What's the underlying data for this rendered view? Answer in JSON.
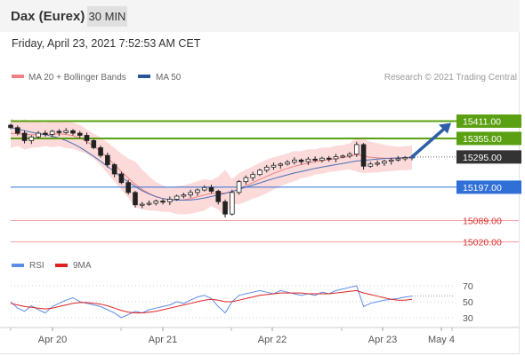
{
  "header": {
    "instrument": "Dax (Eurex)",
    "timeframe": "30 MIN",
    "timestamp": "Friday, April 23, 2021 7:52:53 AM CET"
  },
  "legend": {
    "bollinger_label": "MA 20 + Bollinger Bands",
    "ma50_label": "MA 50",
    "credit": "Research © 2021 Trading Central"
  },
  "colors": {
    "resistance": "#5aa012",
    "support": "#2f6fd6",
    "lower_line": "#f08080",
    "lower_text": "#e03030",
    "pivot": "#333333",
    "bollinger_fill": "#fbd3d3",
    "ma20": "#f08080",
    "ma50": "#4a6fb5",
    "arrow": "#2d5fa8",
    "rsi": "#5b8de8",
    "rsi_ma": "#e02020",
    "candle_up": "#ffffff",
    "candle_down": "#222222"
  },
  "chart_data": [
    {
      "type": "candlestick",
      "title": "Dax (Eurex)",
      "x_ticks": [
        "Apr 20",
        "Apr 21",
        "Apr 22",
        "Apr 23",
        "May 4"
      ],
      "ylim": [
        15000,
        15440
      ],
      "levels": [
        {
          "value": 15411,
          "label": "15411.00",
          "kind": "resistance"
        },
        {
          "value": 15355,
          "label": "15355.00",
          "kind": "resistance"
        },
        {
          "value": 15295,
          "label": "15295.00",
          "kind": "pivot"
        },
        {
          "value": 15197,
          "label": "15197.00",
          "kind": "support"
        },
        {
          "value": 15089,
          "label": "15089.00",
          "kind": "lower"
        },
        {
          "value": 15020,
          "label": "15020.00",
          "kind": "lower"
        }
      ],
      "close_series": [
        15390,
        15372,
        15348,
        15360,
        15372,
        15368,
        15378,
        15374,
        15380,
        15372,
        15365,
        15348,
        15325,
        15300,
        15270,
        15240,
        15212,
        15180,
        15140,
        15142,
        15145,
        15152,
        15150,
        15158,
        15168,
        15172,
        15180,
        15188,
        15196,
        15184,
        15150,
        15110,
        15180,
        15215,
        15228,
        15238,
        15252,
        15262,
        15268,
        15272,
        15278,
        15285,
        15280,
        15288,
        15284,
        15291,
        15289,
        15296,
        15298,
        15304,
        15335,
        15265,
        15272,
        15275,
        15281,
        15285,
        15289,
        15293,
        15295
      ],
      "ma20": [
        15372,
        15370,
        15368,
        15367,
        15367,
        15368,
        15369,
        15370,
        15368,
        15364,
        15356,
        15345,
        15330,
        15313,
        15292,
        15270,
        15248,
        15226,
        15206,
        15190,
        15177,
        15167,
        15160,
        15156,
        15155,
        15156,
        15160,
        15166,
        15172,
        15177,
        15178,
        15178,
        15183,
        15192,
        15202,
        15212,
        15222,
        15232,
        15242,
        15250,
        15258,
        15265,
        15270,
        15275,
        15279,
        15283,
        15286,
        15290,
        15293,
        15297,
        15303,
        15298,
        15294,
        15292,
        15291,
        15290,
        15290,
        15291,
        15293
      ],
      "ma50": [
        15390,
        15385,
        15380,
        15375,
        15371,
        15367,
        15362,
        15356,
        15348,
        15338,
        15326,
        15312,
        15297,
        15281,
        15264,
        15247,
        15230,
        15214,
        15199,
        15186,
        15175,
        15166,
        15160,
        15157,
        15155,
        15155,
        15156,
        15158,
        15162,
        15167,
        15172,
        15177,
        15183,
        15190,
        15197,
        15204,
        15211,
        15218,
        15225,
        15231,
        15237,
        15243,
        15248,
        15253,
        15258,
        15262,
        15266,
        15270,
        15274,
        15278,
        15282,
        15284,
        15286,
        15288,
        15290,
        15291,
        15292,
        15293,
        15294
      ],
      "projection": [
        15295,
        15411
      ]
    },
    {
      "type": "line",
      "title": "RSI",
      "series": [
        {
          "name": "RSI",
          "values": [
            50,
            42,
            38,
            45,
            40,
            36,
            44,
            48,
            52,
            55,
            50,
            48,
            46,
            44,
            40,
            36,
            30,
            34,
            38,
            36,
            40,
            42,
            44,
            46,
            50,
            48,
            52,
            56,
            58,
            54,
            44,
            36,
            50,
            58,
            60,
            62,
            64,
            62,
            60,
            64,
            62,
            60,
            58,
            60,
            58,
            62,
            60,
            64,
            66,
            68,
            70,
            44,
            48,
            50,
            52,
            53,
            54,
            56,
            57
          ]
        },
        {
          "name": "9MA",
          "values": [
            48,
            46,
            44,
            43,
            42,
            41,
            42,
            44,
            46,
            48,
            49,
            49,
            48,
            47,
            45,
            42,
            39,
            37,
            36,
            36,
            37,
            38,
            40,
            42,
            44,
            46,
            48,
            50,
            52,
            53,
            52,
            50,
            50,
            52,
            54,
            56,
            58,
            59,
            60,
            61,
            61,
            61,
            61,
            60,
            60,
            60,
            60,
            61,
            62,
            63,
            64,
            61,
            59,
            57,
            55,
            53,
            52,
            52,
            53
          ]
        }
      ],
      "ylim": [
        15,
        80
      ],
      "y_ticks": [
        70,
        50,
        30
      ]
    }
  ]
}
